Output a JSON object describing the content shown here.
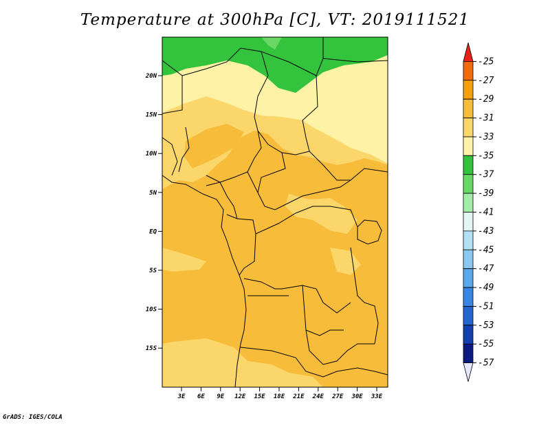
{
  "title": "Temperature at 300hPa [C], VT: 2019111521",
  "credit": "GrADS: IGES/COLA",
  "map": {
    "lat_ticks": [
      "20N",
      "15N",
      "10N",
      "5N",
      "EQ",
      "5S",
      "10S",
      "15S"
    ],
    "lon_ticks": [
      "3E",
      "6E",
      "9E",
      "12E",
      "15E",
      "18E",
      "21E",
      "24E",
      "27E",
      "30E",
      "33E"
    ]
  },
  "colorbar": {
    "labels": [
      "-25",
      "-27",
      "-29",
      "-31",
      "-33",
      "-35",
      "-37",
      "-39",
      "-41",
      "-43",
      "-45",
      "-47",
      "-49",
      "-51",
      "-53",
      "-55",
      "-57"
    ],
    "colors": [
      "#e8231a",
      "#f26b0c",
      "#f5a00f",
      "#f7bd3a",
      "#fbd76b",
      "#fdf2a6",
      "#34c33c",
      "#6ad865",
      "#a4ecaa",
      "#e3f6f3",
      "#b4e0f4",
      "#8bc8f0",
      "#5aa8ec",
      "#3a86e4",
      "#2465d0",
      "#143fb0",
      "#0a1a80",
      "#e6e8ff"
    ]
  }
}
